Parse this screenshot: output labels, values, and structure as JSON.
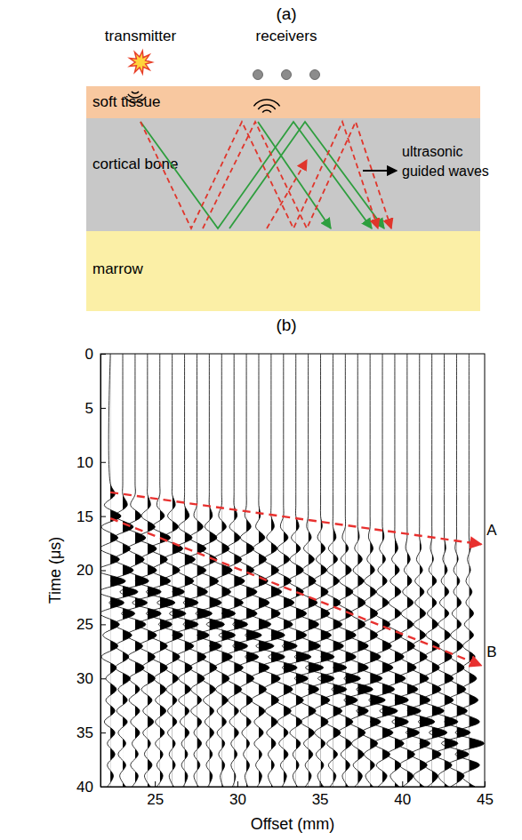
{
  "diagram": {
    "panel_label": "(a)",
    "transmitter": "transmitter",
    "receivers": "receivers",
    "layers": [
      "soft tissue",
      "cortical bone",
      "marrow"
    ],
    "wave_label": "ultrasonic guided waves"
  },
  "chart_data": {
    "type": "wiggle",
    "panel_label": "(b)",
    "x_label": "Offset (mm)",
    "y_label": "Time (μs)",
    "xlim": [
      21.7,
      45
    ],
    "xticks": [
      25,
      30,
      35,
      40,
      45
    ],
    "ylim": [
      0,
      40
    ],
    "yticks": [
      0,
      5,
      10,
      15,
      20,
      25,
      30,
      35,
      40
    ],
    "color": "#000000",
    "time": [
      0,
      12,
      13,
      14,
      15,
      16,
      17,
      18,
      19,
      20,
      21,
      22,
      23,
      24,
      25,
      26,
      27,
      28,
      29,
      30,
      31,
      32,
      33,
      34,
      35,
      36,
      37,
      38,
      39,
      40
    ],
    "traces": [
      {
        "offset": 22.3,
        "values": [
          0,
          0,
          0.3,
          -0.4,
          0.7,
          -0.6,
          0.5,
          -0.7,
          0.6,
          -0.9,
          1.0,
          -0.8,
          0.9,
          -0.7,
          0.6,
          -0.5,
          0.5,
          -0.6,
          0.4,
          -0.3,
          0.4,
          -0.3,
          0.3,
          -0.4,
          0.3,
          -0.2,
          0.3,
          -0.2,
          0.2,
          -0.2
        ]
      },
      {
        "offset": 23.05,
        "values": [
          0,
          0,
          0,
          0.3,
          -0.5,
          0.7,
          -0.6,
          0.5,
          -0.6,
          0.7,
          -0.8,
          1.0,
          -0.9,
          0.8,
          -0.6,
          0.6,
          -0.5,
          0.4,
          -0.5,
          0.5,
          -0.3,
          0.3,
          -0.4,
          0.3,
          -0.3,
          0.2,
          -0.3,
          0.2,
          -0.2,
          0.2
        ]
      },
      {
        "offset": 23.8,
        "values": [
          0,
          0,
          0,
          -0.3,
          0.4,
          -0.6,
          0.7,
          -0.5,
          0.6,
          -0.5,
          0.9,
          -1.0,
          0.8,
          -0.9,
          0.7,
          -0.6,
          0.5,
          -0.5,
          0.6,
          -0.4,
          0.3,
          -0.4,
          0.3,
          -0.3,
          0.3,
          -0.2,
          0.2,
          -0.3,
          0.2,
          -0.2
        ]
      },
      {
        "offset": 24.55,
        "values": [
          0,
          0,
          0,
          0.2,
          -0.4,
          0.5,
          -0.7,
          0.6,
          -0.5,
          0.6,
          -0.8,
          0.9,
          -1.0,
          0.9,
          -0.7,
          0.6,
          -0.6,
          0.5,
          -0.4,
          0.5,
          -0.4,
          0.3,
          -0.3,
          0.4,
          -0.3,
          0.2,
          -0.2,
          0.3,
          -0.2,
          0.2
        ]
      },
      {
        "offset": 25.3,
        "values": [
          0,
          0,
          0,
          -0.2,
          0.3,
          -0.5,
          0.7,
          -0.7,
          0.5,
          -0.6,
          0.7,
          -0.9,
          1.0,
          -0.9,
          0.8,
          -0.7,
          0.5,
          -0.6,
          0.5,
          -0.4,
          0.4,
          -0.3,
          0.4,
          -0.3,
          0.3,
          -0.3,
          0.2,
          -0.2,
          0.2,
          -0.2
        ]
      },
      {
        "offset": 26.05,
        "values": [
          0,
          0,
          0,
          0.2,
          -0.3,
          0.4,
          -0.6,
          0.7,
          -0.6,
          0.5,
          -0.7,
          0.8,
          -1.0,
          0.9,
          -0.9,
          0.7,
          -0.6,
          0.5,
          -0.5,
          0.4,
          -0.4,
          0.3,
          -0.3,
          0.3,
          -0.3,
          0.2,
          -0.2,
          0.2,
          -0.2,
          0.1
        ]
      },
      {
        "offset": 26.8,
        "values": [
          0,
          0,
          0,
          0,
          0.3,
          -0.4,
          0.5,
          -0.7,
          0.7,
          -0.5,
          0.6,
          -0.8,
          0.9,
          -1.0,
          0.9,
          -0.8,
          0.6,
          -0.6,
          0.5,
          -0.4,
          0.4,
          -0.4,
          0.3,
          -0.3,
          0.3,
          -0.2,
          0.2,
          -0.2,
          0.2,
          -0.1
        ]
      },
      {
        "offset": 27.55,
        "values": [
          0,
          0,
          0,
          0,
          -0.2,
          0.4,
          -0.5,
          0.6,
          -0.7,
          0.6,
          -0.5,
          0.7,
          -0.9,
          1.0,
          -0.9,
          0.8,
          -0.7,
          0.6,
          -0.5,
          0.5,
          -0.4,
          0.3,
          -0.4,
          0.3,
          -0.2,
          0.3,
          -0.2,
          0.2,
          -0.2,
          0.1
        ]
      },
      {
        "offset": 28.3,
        "values": [
          0,
          0,
          0,
          0,
          0.2,
          -0.3,
          0.5,
          -0.6,
          0.5,
          -0.7,
          0.6,
          -0.6,
          0.8,
          -0.9,
          1.0,
          -0.8,
          0.8,
          -0.6,
          0.5,
          -0.5,
          0.4,
          -0.4,
          0.3,
          -0.3,
          0.3,
          -0.2,
          0.2,
          -0.2,
          0.2,
          -0.1
        ]
      },
      {
        "offset": 29.05,
        "values": [
          0,
          0,
          0,
          0,
          -0.2,
          0.3,
          -0.4,
          0.5,
          -0.6,
          0.7,
          -0.5,
          0.6,
          -0.7,
          0.9,
          -1.0,
          0.9,
          -0.8,
          0.7,
          -0.5,
          0.5,
          -0.4,
          0.4,
          -0.3,
          0.3,
          -0.3,
          0.2,
          -0.2,
          0.2,
          -0.1,
          0.1
        ]
      },
      {
        "offset": 29.8,
        "values": [
          0,
          0,
          0,
          0,
          0.2,
          -0.3,
          0.4,
          -0.5,
          0.5,
          -0.6,
          0.7,
          -0.6,
          0.6,
          -0.8,
          0.9,
          -1.0,
          0.9,
          -0.7,
          0.6,
          -0.5,
          0.5,
          -0.4,
          0.3,
          -0.3,
          0.3,
          -0.2,
          0.2,
          -0.2,
          0.1,
          -0.1
        ]
      },
      {
        "offset": 30.55,
        "values": [
          0,
          0,
          0,
          0,
          -0.1,
          0.3,
          -0.4,
          0.5,
          -0.5,
          0.5,
          -0.7,
          0.7,
          -0.6,
          0.7,
          -0.9,
          1.0,
          -0.9,
          0.8,
          -0.6,
          0.5,
          -0.5,
          0.4,
          -0.4,
          0.3,
          -0.3,
          0.2,
          -0.2,
          0.2,
          -0.1,
          0.1
        ]
      },
      {
        "offset": 31.3,
        "values": [
          0,
          0,
          0,
          0,
          0.1,
          -0.2,
          0.4,
          -0.4,
          0.5,
          -0.5,
          0.6,
          -0.7,
          0.7,
          -0.6,
          0.8,
          -0.9,
          1.0,
          -0.9,
          0.7,
          -0.6,
          0.5,
          -0.5,
          0.4,
          -0.3,
          0.3,
          -0.3,
          0.2,
          -0.2,
          0.2,
          -0.1
        ]
      },
      {
        "offset": 32.05,
        "values": [
          0,
          0,
          0,
          0,
          0,
          0.2,
          -0.3,
          0.4,
          -0.5,
          0.5,
          -0.5,
          0.7,
          -0.7,
          0.6,
          -0.7,
          0.9,
          -1.0,
          0.9,
          -0.8,
          0.6,
          -0.5,
          0.5,
          -0.4,
          0.4,
          -0.3,
          0.3,
          -0.2,
          0.2,
          -0.2,
          0.1
        ]
      },
      {
        "offset": 32.8,
        "values": [
          0,
          0,
          0,
          0,
          0,
          -0.2,
          0.3,
          -0.4,
          0.4,
          -0.5,
          0.5,
          -0.6,
          0.7,
          -0.7,
          0.6,
          -0.8,
          0.9,
          -1.0,
          0.9,
          -0.7,
          0.6,
          -0.5,
          0.5,
          -0.4,
          0.3,
          -0.3,
          0.3,
          -0.2,
          0.2,
          -0.1
        ]
      },
      {
        "offset": 33.55,
        "values": [
          0,
          0,
          0,
          0,
          0,
          0.2,
          -0.3,
          0.3,
          -0.4,
          0.5,
          -0.5,
          0.5,
          -0.6,
          0.7,
          -0.7,
          0.7,
          -0.9,
          1.0,
          -0.9,
          0.8,
          -0.6,
          0.5,
          -0.5,
          0.4,
          -0.4,
          0.3,
          -0.2,
          0.2,
          -0.2,
          0.1
        ]
      },
      {
        "offset": 34.3,
        "values": [
          0,
          0,
          0,
          0,
          0,
          -0.1,
          0.2,
          -0.3,
          0.4,
          -0.4,
          0.5,
          -0.5,
          0.6,
          -0.7,
          0.7,
          -0.6,
          0.8,
          -0.9,
          1.0,
          -0.9,
          0.7,
          -0.6,
          0.5,
          -0.5,
          0.4,
          -0.3,
          0.3,
          -0.2,
          0.2,
          -0.2
        ]
      },
      {
        "offset": 35.05,
        "values": [
          0,
          0,
          0,
          0,
          0,
          0.1,
          -0.2,
          0.3,
          -0.3,
          0.4,
          -0.5,
          0.5,
          -0.5,
          0.6,
          -0.7,
          0.7,
          -0.7,
          0.9,
          -1.0,
          0.9,
          -0.8,
          0.6,
          -0.5,
          0.5,
          -0.4,
          0.3,
          -0.3,
          0.2,
          -0.2,
          0.2
        ]
      },
      {
        "offset": 35.8,
        "values": [
          0,
          0,
          0,
          0,
          0,
          0,
          0.2,
          -0.3,
          0.3,
          -0.4,
          0.4,
          -0.5,
          0.5,
          -0.6,
          0.6,
          -0.7,
          0.7,
          -0.8,
          0.9,
          -1.0,
          0.9,
          -0.7,
          0.6,
          -0.5,
          0.5,
          -0.4,
          0.3,
          -0.3,
          0.2,
          -0.2
        ]
      },
      {
        "offset": 36.55,
        "values": [
          0,
          0,
          0,
          0,
          0,
          0,
          -0.2,
          0.2,
          -0.3,
          0.4,
          -0.4,
          0.5,
          -0.5,
          0.5,
          -0.6,
          0.7,
          -0.7,
          0.7,
          -0.8,
          1.0,
          -0.9,
          0.8,
          -0.6,
          0.5,
          -0.5,
          0.4,
          -0.3,
          0.3,
          -0.2,
          0.2
        ]
      },
      {
        "offset": 37.3,
        "values": [
          0,
          0,
          0,
          0,
          0,
          0,
          0.1,
          -0.2,
          0.3,
          -0.3,
          0.4,
          -0.4,
          0.5,
          -0.5,
          0.5,
          -0.6,
          0.7,
          -0.7,
          0.7,
          -0.9,
          1.0,
          -0.9,
          0.7,
          -0.6,
          0.5,
          -0.4,
          0.4,
          -0.3,
          0.3,
          -0.2
        ]
      },
      {
        "offset": 38.05,
        "values": [
          0,
          0,
          0,
          0,
          0,
          0,
          -0.1,
          0.2,
          -0.2,
          0.3,
          -0.4,
          0.4,
          -0.4,
          0.5,
          -0.5,
          0.5,
          -0.6,
          0.7,
          -0.7,
          0.8,
          -0.9,
          1.0,
          -0.9,
          0.7,
          -0.6,
          0.5,
          -0.4,
          0.3,
          -0.3,
          0.2
        ]
      },
      {
        "offset": 38.8,
        "values": [
          0,
          0,
          0,
          0,
          0,
          0,
          0.1,
          -0.2,
          0.2,
          -0.3,
          0.3,
          -0.4,
          0.4,
          -0.5,
          0.5,
          -0.5,
          0.6,
          -0.6,
          0.7,
          -0.7,
          0.8,
          -0.9,
          1.0,
          -0.8,
          0.7,
          -0.6,
          0.5,
          -0.4,
          0.3,
          -0.3
        ]
      },
      {
        "offset": 39.55,
        "values": [
          0,
          0,
          0,
          0,
          0,
          0,
          0,
          0.2,
          -0.2,
          0.3,
          -0.3,
          0.4,
          -0.4,
          0.4,
          -0.5,
          0.5,
          -0.5,
          0.6,
          -0.7,
          0.7,
          -0.7,
          0.9,
          -1.0,
          0.9,
          -0.7,
          0.6,
          -0.5,
          0.4,
          -0.3,
          0.3
        ]
      },
      {
        "offset": 40.3,
        "values": [
          0,
          0,
          0,
          0,
          0,
          0,
          0,
          -0.1,
          0.2,
          -0.2,
          0.3,
          -0.3,
          0.4,
          -0.4,
          0.4,
          -0.5,
          0.5,
          -0.5,
          0.6,
          -0.7,
          0.7,
          -0.8,
          0.9,
          -1.0,
          0.8,
          -0.7,
          0.5,
          -0.5,
          0.4,
          -0.3
        ]
      },
      {
        "offset": 41.05,
        "values": [
          0,
          0,
          0,
          0,
          0,
          0,
          0,
          0.1,
          -0.2,
          0.2,
          -0.3,
          0.3,
          -0.3,
          0.4,
          -0.4,
          0.4,
          -0.5,
          0.5,
          -0.6,
          0.6,
          -0.7,
          0.7,
          -0.8,
          1.0,
          -0.9,
          0.7,
          -0.6,
          0.5,
          -0.4,
          0.3
        ]
      },
      {
        "offset": 41.8,
        "values": [
          0,
          0,
          0,
          0,
          0,
          0,
          0,
          -0.1,
          0.1,
          -0.2,
          0.3,
          -0.3,
          0.3,
          -0.3,
          0.4,
          -0.4,
          0.5,
          -0.5,
          0.5,
          -0.6,
          0.6,
          -0.7,
          0.8,
          -0.9,
          1.0,
          -0.8,
          0.6,
          -0.5,
          0.4,
          -0.3
        ]
      },
      {
        "offset": 42.55,
        "values": [
          0,
          0,
          0,
          0,
          0,
          0,
          0,
          0.1,
          -0.1,
          0.2,
          -0.2,
          0.3,
          -0.3,
          0.3,
          -0.4,
          0.4,
          -0.4,
          0.5,
          -0.5,
          0.6,
          -0.6,
          0.6,
          -0.7,
          0.9,
          -1.0,
          0.9,
          -0.7,
          0.5,
          -0.4,
          0.3
        ]
      },
      {
        "offset": 43.3,
        "values": [
          0,
          0,
          0,
          0,
          0,
          0,
          0,
          -0.1,
          0.1,
          -0.2,
          0.2,
          -0.2,
          0.3,
          -0.3,
          0.3,
          -0.4,
          0.4,
          -0.4,
          0.5,
          -0.5,
          0.6,
          -0.6,
          0.7,
          -0.8,
          0.9,
          -1.0,
          0.8,
          -0.6,
          0.5,
          -0.4
        ]
      },
      {
        "offset": 44.05,
        "values": [
          0,
          0,
          0,
          0,
          0,
          0,
          0,
          0.1,
          -0.1,
          0.1,
          -0.2,
          0.2,
          -0.2,
          0.3,
          -0.3,
          0.3,
          -0.4,
          0.4,
          -0.4,
          0.5,
          -0.5,
          0.6,
          -0.6,
          0.7,
          -0.9,
          1.0,
          -0.9,
          0.7,
          -0.5,
          0.4
        ]
      }
    ],
    "annotations": [
      {
        "label": "A",
        "x": [
          22.3,
          44.8
        ],
        "y": [
          12.8,
          17.6
        ],
        "color": "#e8312f",
        "line_style": "dashed"
      },
      {
        "label": "B",
        "x": [
          22.3,
          44.8
        ],
        "y": [
          15.2,
          28.8
        ],
        "color": "#e8312f",
        "line_style": "dashed"
      }
    ]
  }
}
